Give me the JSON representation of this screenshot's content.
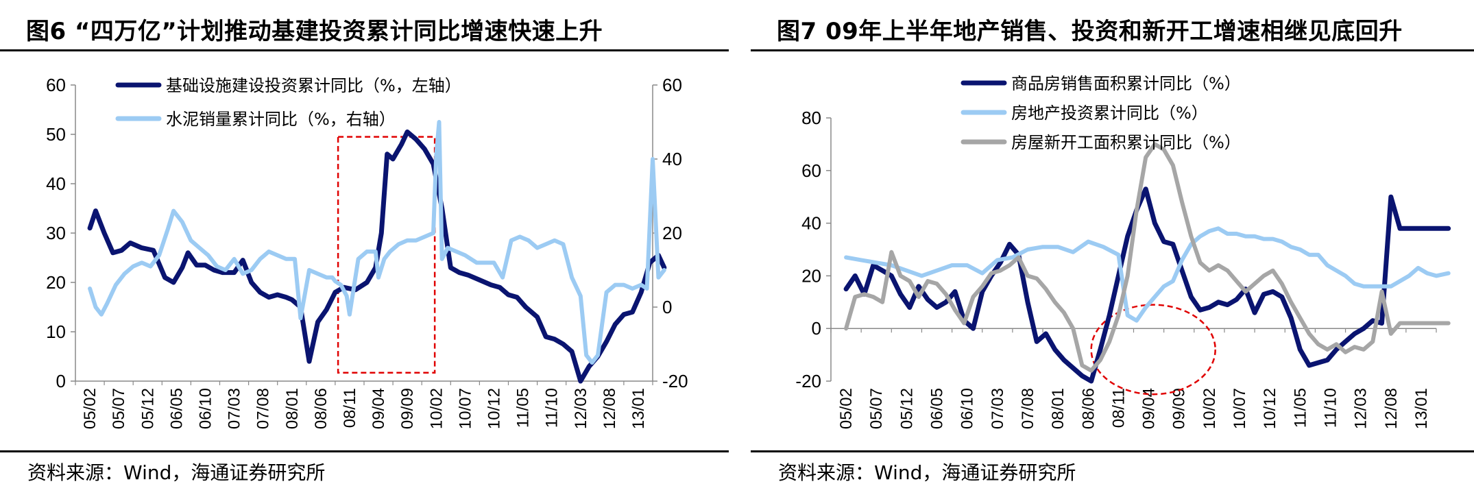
{
  "left": {
    "title": "图6 “四万亿”计划推动基建投资累计同比增速快速上升",
    "source": "资料来源：Wind，海通证券研究所",
    "chart_data": {
      "type": "line",
      "x_ticks": [
        "05/02",
        "05/07",
        "05/12",
        "06/05",
        "06/10",
        "07/03",
        "07/08",
        "08/01",
        "08/06",
        "08/11",
        "09/04",
        "09/09",
        "10/02",
        "10/07",
        "10/12",
        "11/05",
        "11/10",
        "12/03",
        "12/08",
        "13/01"
      ],
      "y_left": {
        "min": 0,
        "max": 60,
        "ticks": [
          0,
          10,
          20,
          30,
          40,
          50,
          60
        ]
      },
      "y_right": {
        "min": -20,
        "max": 60,
        "ticks": [
          -20,
          0,
          20,
          40,
          60
        ]
      },
      "legend_position": "top",
      "grid": false,
      "series": [
        {
          "name": "基础设施建设投资累计同比（%，左轴）",
          "axis": "left",
          "color": "#0a1470",
          "x": [
            0,
            0.2,
            0.5,
            0.8,
            1.1,
            1.4,
            1.8,
            2.2,
            2.6,
            2.9,
            3.2,
            3.4,
            3.7,
            4.0,
            4.3,
            4.6,
            5.0,
            5.3,
            5.6,
            5.9,
            6.2,
            6.5,
            6.8,
            7.0,
            7.3,
            7.6,
            7.9,
            8.2,
            8.5,
            8.8,
            9.2,
            9.6,
            9.9,
            10.1,
            10.3,
            10.5,
            10.8,
            11.0,
            11.3,
            11.6,
            11.9,
            12.2,
            12.5,
            12.8,
            13.1,
            13.5,
            13.9,
            14.2,
            14.5,
            14.8,
            15.1,
            15.5,
            15.8,
            16.1,
            16.4,
            16.7,
            17.0,
            17.3,
            17.6,
            17.9,
            18.2,
            18.5,
            18.8,
            19.1,
            19.4,
            19.7,
            19.9
          ],
          "values": [
            31,
            34.5,
            30,
            26,
            26.5,
            28,
            27,
            26.5,
            21,
            20,
            23,
            26,
            23.5,
            23.5,
            22.5,
            22,
            22,
            24.5,
            20,
            18,
            17,
            17.5,
            17,
            16.5,
            15,
            4,
            12,
            14.5,
            18,
            19,
            18.5,
            20,
            23,
            30,
            46,
            45,
            48,
            50.5,
            49,
            47,
            44,
            35,
            23,
            22,
            21.5,
            20.5,
            19.5,
            19,
            17.5,
            17,
            15,
            13,
            9,
            8.5,
            7.5,
            6,
            0,
            3,
            5,
            8,
            11.5,
            13.5,
            14,
            18,
            24,
            25.5,
            23
          ]
        },
        {
          "name": "水泥销量累计同比（%，右轴）",
          "axis": "right",
          "color": "#9ccbf3",
          "x": [
            0,
            0.2,
            0.4,
            0.6,
            0.9,
            1.2,
            1.5,
            1.8,
            2.1,
            2.4,
            2.7,
            2.9,
            3.2,
            3.5,
            3.8,
            4.1,
            4.4,
            4.7,
            5.0,
            5.3,
            5.6,
            5.9,
            6.2,
            6.5,
            6.8,
            7.1,
            7.3,
            7.6,
            7.9,
            8.2,
            8.4,
            8.5,
            8.7,
            8.9,
            9.0,
            9.3,
            9.6,
            9.9,
            10.0,
            10.2,
            10.4,
            10.7,
            11.0,
            11.3,
            11.6,
            11.9,
            12.0,
            12.1,
            12.2,
            12.4,
            12.7,
            13.0,
            13.2,
            13.4,
            13.7,
            14.0,
            14.3,
            14.6,
            14.9,
            15.2,
            15.5,
            15.8,
            16.1,
            16.4,
            16.7,
            17.0,
            17.2,
            17.4,
            17.6,
            17.9,
            18.2,
            18.5,
            18.8,
            19.1,
            19.3,
            19.5,
            19.7,
            19.9
          ],
          "values": [
            5,
            0,
            -2,
            1,
            6,
            9,
            11,
            12,
            11,
            14,
            21,
            26,
            23,
            18,
            16,
            14,
            11,
            10,
            13,
            9,
            10,
            13,
            15,
            14,
            13,
            13,
            -3,
            10,
            9,
            8,
            8,
            7,
            6,
            3,
            -2,
            13,
            15,
            15,
            8,
            13,
            15,
            17,
            18,
            18,
            19,
            20,
            41,
            50,
            13,
            16,
            15,
            14,
            13,
            12,
            12,
            12,
            8,
            18,
            19,
            18,
            16,
            17,
            18,
            17,
            8,
            3,
            -13,
            -15,
            -13,
            4,
            6,
            6,
            5,
            6,
            5,
            40,
            8,
            10
          ]
        }
      ],
      "annotation": "red dashed rectangle highlighting 08/10–10/03"
    }
  },
  "right": {
    "title": "图7  09年上半年地产销售、投资和新开工增速相继见底回升",
    "source": "资料来源：Wind，海通证券研究所",
    "chart_data": {
      "type": "line",
      "x_ticks": [
        "05/02",
        "05/07",
        "05/12",
        "06/05",
        "06/10",
        "07/03",
        "07/08",
        "08/01",
        "08/06",
        "08/11",
        "09/04",
        "09/09",
        "10/02",
        "10/07",
        "10/12",
        "11/05",
        "11/10",
        "12/03",
        "12/08",
        "13/01"
      ],
      "y_left": {
        "min": -20,
        "max": 80,
        "ticks": [
          -20,
          0,
          20,
          40,
          60,
          80
        ]
      },
      "legend_position": "top",
      "grid": false,
      "series": [
        {
          "name": "商品房销售面积累计同比（%）",
          "color": "#0a1470",
          "x": [
            0,
            0.3,
            0.6,
            0.9,
            1.2,
            1.5,
            1.8,
            2.1,
            2.4,
            2.7,
            3.0,
            3.3,
            3.6,
            3.9,
            4.2,
            4.5,
            4.8,
            5.1,
            5.4,
            5.7,
            6.0,
            6.3,
            6.6,
            6.9,
            7.2,
            7.5,
            7.8,
            8.1,
            8.4,
            8.7,
            9.0,
            9.3,
            9.6,
            9.9,
            10.2,
            10.5,
            10.8,
            11.1,
            11.4,
            11.7,
            12.0,
            12.3,
            12.6,
            12.9,
            13.2,
            13.5,
            13.8,
            14.1,
            14.4,
            14.7,
            15.0,
            15.3,
            15.6,
            15.9,
            16.2,
            16.5,
            16.8,
            17.1,
            17.4,
            17.7,
            18.0,
            18.3,
            18.6,
            18.9,
            19.2,
            19.5,
            19.7,
            19.9
          ],
          "values": [
            15,
            20,
            13,
            24,
            22,
            20,
            13,
            8,
            16,
            11,
            8,
            10,
            14,
            3,
            0,
            14,
            20,
            25,
            32,
            28,
            10,
            -5,
            -2,
            -8,
            -12,
            -15,
            -18,
            -20,
            -8,
            5,
            20,
            35,
            45,
            53,
            40,
            33,
            32,
            22,
            12,
            7,
            8,
            10,
            9,
            11,
            15,
            6,
            13,
            14,
            12,
            4,
            -8,
            -14,
            -13,
            -12,
            -8,
            -5,
            -2,
            0,
            3,
            2,
            50,
            38,
            38,
            38,
            38,
            38,
            38,
            38
          ]
        },
        {
          "name": "房地产投资累计同比（%）",
          "color": "#9ccbf3",
          "x": [
            0,
            0.5,
            1.0,
            1.5,
            2.0,
            2.5,
            3.0,
            3.5,
            4.0,
            4.5,
            5.0,
            5.5,
            6.0,
            6.5,
            7.0,
            7.5,
            8.0,
            8.5,
            9.0,
            9.3,
            9.6,
            9.9,
            10.2,
            10.5,
            10.8,
            11.1,
            11.4,
            11.7,
            12.0,
            12.3,
            12.6,
            12.9,
            13.2,
            13.5,
            13.8,
            14.1,
            14.4,
            14.7,
            15.0,
            15.3,
            15.6,
            15.9,
            16.2,
            16.5,
            16.8,
            17.1,
            17.4,
            17.7,
            18.0,
            18.3,
            18.6,
            18.9,
            19.2,
            19.5,
            19.9
          ],
          "values": [
            27,
            26,
            25,
            24,
            22,
            20,
            22,
            24,
            24,
            21,
            26,
            27,
            30,
            31,
            31,
            29,
            33,
            31,
            28,
            5,
            3,
            8,
            12,
            16,
            18,
            26,
            32,
            35,
            37,
            38,
            36,
            36,
            35,
            35,
            34,
            34,
            33,
            31,
            30,
            28,
            28,
            24,
            22,
            20,
            17,
            16,
            16,
            16,
            16,
            18,
            20,
            23,
            21,
            20,
            21
          ]
        },
        {
          "name": "房屋新开工面积累计同比（%）",
          "color": "#a6a6a6",
          "x": [
            0,
            0.3,
            0.6,
            0.9,
            1.2,
            1.5,
            1.8,
            2.1,
            2.4,
            2.7,
            3.0,
            3.3,
            3.6,
            3.9,
            4.2,
            4.5,
            4.8,
            5.1,
            5.4,
            5.7,
            6.0,
            6.3,
            6.6,
            6.9,
            7.2,
            7.5,
            7.8,
            8.1,
            8.4,
            8.7,
            9.0,
            9.3,
            9.6,
            9.9,
            10.2,
            10.5,
            10.8,
            11.1,
            11.4,
            11.7,
            12.0,
            12.3,
            12.6,
            12.9,
            13.2,
            13.5,
            13.8,
            14.1,
            14.4,
            14.7,
            15.0,
            15.3,
            15.6,
            15.9,
            16.2,
            16.5,
            16.8,
            17.1,
            17.4,
            17.7,
            18.0,
            18.3,
            18.6,
            18.9,
            19.2,
            19.5,
            19.9
          ],
          "values": [
            0,
            12,
            13,
            12,
            10,
            29,
            20,
            18,
            12,
            18,
            17,
            13,
            7,
            2,
            12,
            16,
            21,
            22,
            24,
            27,
            20,
            19,
            15,
            10,
            6,
            0,
            -14,
            -16,
            -12,
            -5,
            5,
            20,
            45,
            65,
            70,
            68,
            62,
            48,
            35,
            25,
            22,
            24,
            22,
            18,
            14,
            17,
            20,
            22,
            17,
            10,
            4,
            -2,
            -6,
            -8,
            -6,
            -9,
            -7,
            -8,
            -5,
            14,
            -2,
            2,
            2,
            2,
            2,
            2,
            2
          ]
        }
      ],
      "annotation": "red dashed ellipse highlighting 08/09–09/09 trough"
    }
  }
}
